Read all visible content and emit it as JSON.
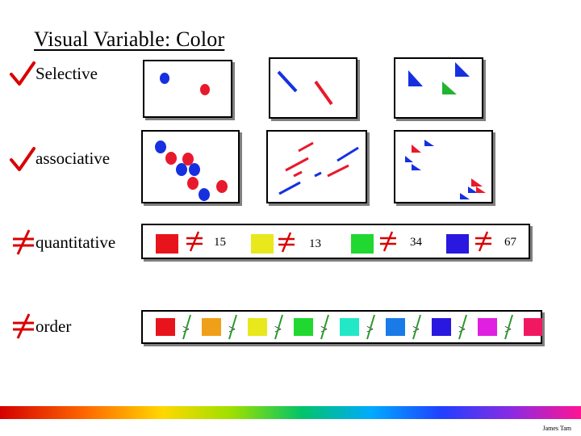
{
  "title": "Visual Variable: Color",
  "rows": [
    {
      "label": "Selective",
      "mark": "check"
    },
    {
      "label": "associative",
      "mark": "check"
    },
    {
      "label": "quantitative",
      "mark": "not-equal"
    },
    {
      "label": "order",
      "mark": "not-equal"
    }
  ],
  "quantitative_values": [
    "15",
    "13",
    "34",
    "67"
  ],
  "order_symbol": ">",
  "colors": {
    "red": "#e8192c",
    "blue": "#1630e0",
    "green": "#22b430",
    "check": "#d90000",
    "order_strike": "#2a9a2a"
  },
  "order_swatches": [
    "#e8141c",
    "#f0a018",
    "#e8e81c",
    "#20d830",
    "#22e8c8",
    "#1a7ae8",
    "#2818e0",
    "#e020e0",
    "#f01860"
  ],
  "quant_swatches": [
    "#e8141c",
    "#e8e81c",
    "#20d830",
    "#2818e0"
  ],
  "author": "James Tam"
}
